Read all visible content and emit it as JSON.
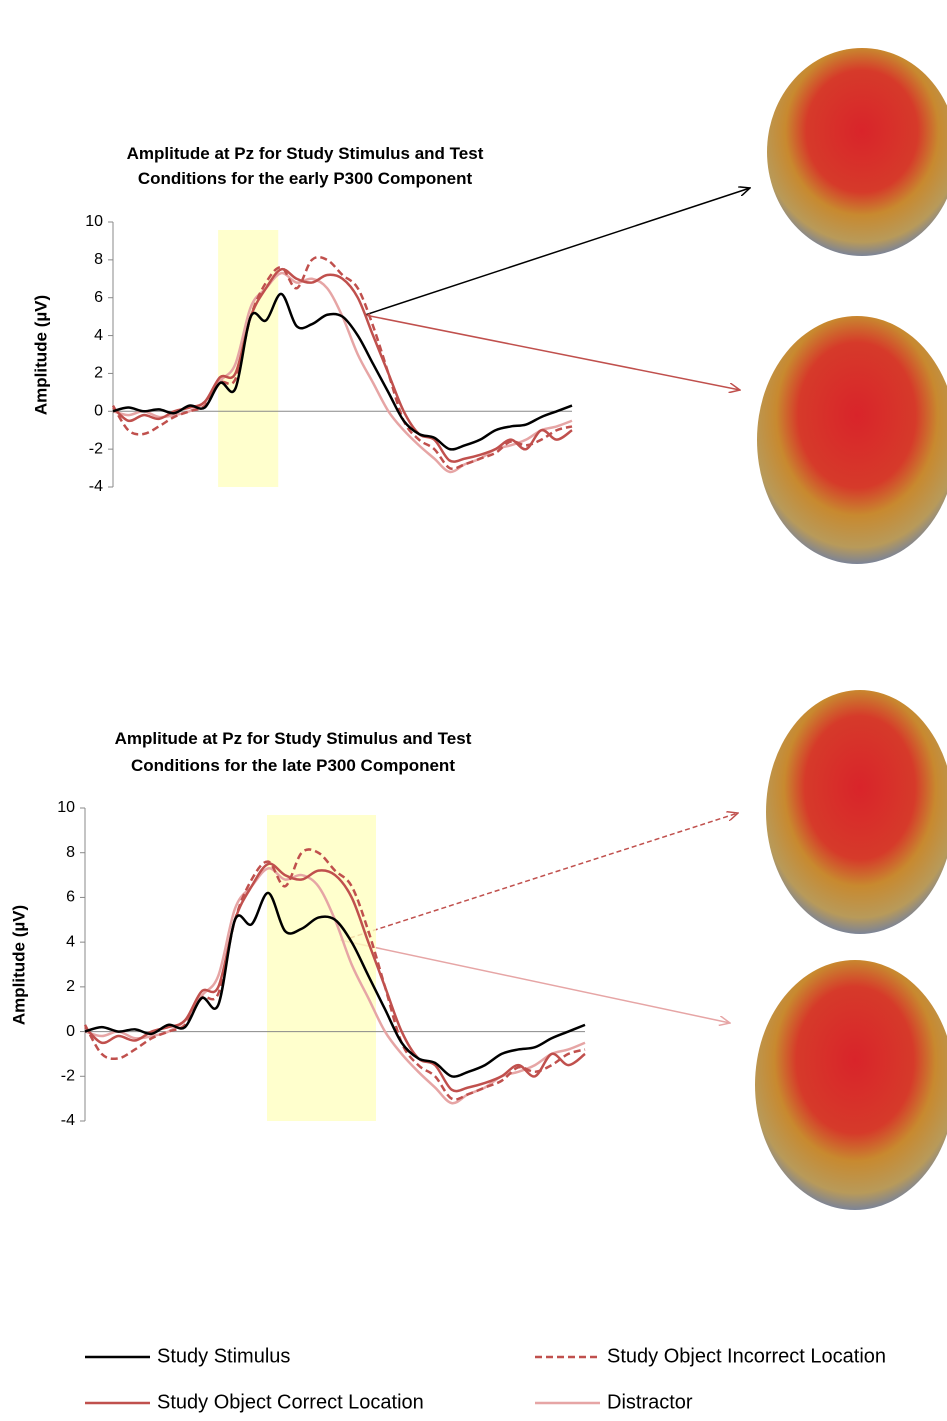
{
  "chart_data": [
    {
      "type": "line",
      "title": "Amplitude at Pz for Study Stimulus and Test Conditions for the early P300 Component",
      "ylabel": "Amplitude (µV)",
      "ylim": [
        -4,
        10
      ],
      "yticks": [
        -4,
        -2,
        0,
        2,
        4,
        6,
        8,
        10
      ],
      "series": [
        {
          "values": [
            0,
            0.2,
            0,
            0.1,
            -0.1,
            0.3,
            0.2,
            1.5,
            1.2,
            5,
            4.8,
            6.2,
            4.5,
            4.6,
            5.1,
            5,
            4,
            2.5,
            1,
            -0.5,
            -1.2,
            -1.4,
            -2,
            -1.8,
            -1.5,
            -1,
            -0.8,
            -0.7,
            -0.3,
            0,
            0.3
          ]
        },
        {
          "values": [
            0.2,
            -0.5,
            -0.2,
            -0.4,
            0,
            0.2,
            0.5,
            1.8,
            2,
            5,
            6.5,
            7.5,
            7,
            6.8,
            7.2,
            7,
            6,
            4,
            2,
            0,
            -1.2,
            -1.5,
            -2.6,
            -2.5,
            -2.3,
            -2,
            -1.5,
            -2,
            -1,
            -1.5,
            -1
          ]
        },
        {
          "values": [
            0.3,
            -1,
            -1.2,
            -0.8,
            -0.3,
            0,
            0.3,
            1.5,
            1.7,
            5,
            6.8,
            7.6,
            6.5,
            8,
            8,
            7.2,
            6.5,
            4.5,
            2,
            -0.5,
            -1.5,
            -2,
            -3,
            -2.8,
            -2.5,
            -2.2,
            -1.6,
            -1.8,
            -1.5,
            -1,
            -0.8
          ]
        },
        {
          "values": [
            0,
            -0.2,
            0,
            -0.3,
            -0.2,
            0,
            0.5,
            1.6,
            2.5,
            5.5,
            6.5,
            7.3,
            6.8,
            7,
            6.5,
            5,
            3,
            1.5,
            0,
            -1,
            -1.8,
            -2.5,
            -3.2,
            -2.8,
            -2.5,
            -2,
            -1.8,
            -1.5,
            -1,
            -0.8,
            -0.5
          ]
        }
      ]
    },
    {
      "type": "line",
      "title": "Amplitude at Pz for Study Stimulus and Test Conditions for the late P300 Component",
      "ylabel": "Amplitude (µV)",
      "ylim": [
        -4,
        10
      ],
      "yticks": [
        -4,
        -2,
        0,
        2,
        4,
        6,
        8,
        10
      ],
      "series": [
        {
          "values": [
            0,
            0.2,
            0,
            0.1,
            -0.1,
            0.3,
            0.2,
            1.5,
            1.2,
            5,
            4.8,
            6.2,
            4.5,
            4.6,
            5.1,
            5,
            4,
            2.5,
            1,
            -0.5,
            -1.2,
            -1.4,
            -2,
            -1.8,
            -1.5,
            -1,
            -0.8,
            -0.7,
            -0.3,
            0,
            0.3
          ]
        },
        {
          "values": [
            0.2,
            -0.5,
            -0.2,
            -0.4,
            0,
            0.2,
            0.5,
            1.8,
            2,
            5,
            6.5,
            7.5,
            7,
            6.8,
            7.2,
            7,
            6,
            4,
            2,
            0,
            -1.2,
            -1.5,
            -2.6,
            -2.5,
            -2.3,
            -2,
            -1.5,
            -2,
            -1,
            -1.5,
            -1
          ]
        },
        {
          "values": [
            0.3,
            -1,
            -1.2,
            -0.8,
            -0.3,
            0,
            0.3,
            1.5,
            1.7,
            5,
            6.8,
            7.6,
            6.5,
            8,
            8,
            7.2,
            6.5,
            4.5,
            2,
            -0.5,
            -1.5,
            -2,
            -3,
            -2.8,
            -2.5,
            -2.2,
            -1.6,
            -1.8,
            -1.5,
            -1,
            -0.8
          ]
        },
        {
          "values": [
            0,
            -0.2,
            0,
            -0.3,
            -0.2,
            0,
            0.5,
            1.6,
            2.5,
            5.5,
            6.5,
            7.3,
            6.8,
            7,
            6.5,
            5,
            3,
            1.5,
            0,
            -1,
            -1.8,
            -2.5,
            -3.2,
            -2.8,
            -2.5,
            -2,
            -1.8,
            -1.5,
            -1,
            -0.8,
            -0.5
          ]
        }
      ]
    }
  ],
  "legend": [
    {
      "name": "Study Stimulus",
      "color": "#000000",
      "dashed": false
    },
    {
      "name": "Study Object Correct Location",
      "color": "#c0504d",
      "dashed": false
    },
    {
      "name": "Study Object Incorrect Location",
      "color": "#c0504d",
      "dashed": true
    },
    {
      "name": "Distractor",
      "color": "#e6a5a5",
      "dashed": false
    }
  ]
}
